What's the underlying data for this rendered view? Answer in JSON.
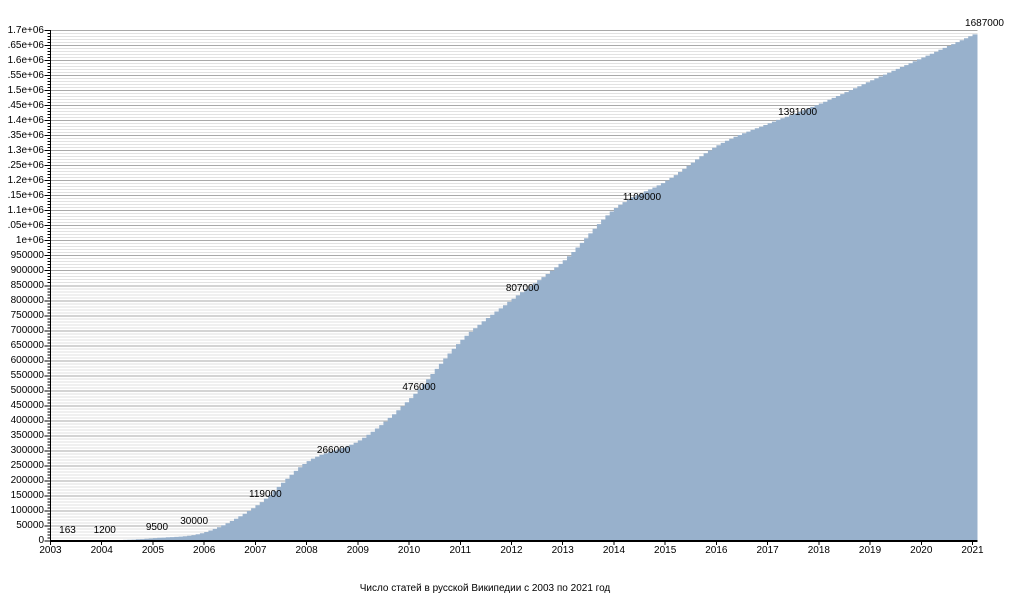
{
  "title": "Число статей в русской Википедии с 2003 по 2021 год",
  "colors": {
    "fill": "#98b1cc",
    "grid_minor": "#e2e2e2",
    "grid_major": "#a8a8a8",
    "axis": "#000000",
    "text": "#000000",
    "background": "#ffffff"
  },
  "chart_data": {
    "type": "area",
    "title": "Число статей в русской Википедии с 2003 по 2021 год",
    "xlabel": "",
    "ylabel": "",
    "x": [
      2003,
      2004,
      2005,
      2006,
      2007,
      2008,
      2009,
      2010,
      2011,
      2012,
      2013,
      2014,
      2015,
      2016,
      2017,
      2018,
      2019,
      2020,
      2021
    ],
    "values": [
      163,
      1200,
      9500,
      30000,
      119000,
      266000,
      335000,
      476000,
      670000,
      807000,
      935000,
      1109000,
      1200000,
      1318000,
      1391000,
      1457000,
      1534000,
      1610000,
      1687000
    ],
    "annotations": [
      {
        "year": 2003,
        "value": 163,
        "label": "163",
        "dx": 17
      },
      {
        "year": 2004,
        "value": 1200,
        "label": "1200",
        "dx": 3
      },
      {
        "year": 2005,
        "value": 9500,
        "label": "9500",
        "dx": 4
      },
      {
        "year": 2006,
        "value": 30000,
        "label": "30000",
        "dx": -10
      },
      {
        "year": 2007,
        "value": 119000,
        "label": "119000",
        "dx": 10
      },
      {
        "year": 2008,
        "value": 266000,
        "label": "266000",
        "dx": 27
      },
      {
        "year": 2010,
        "value": 476000,
        "label": "476000",
        "dx": 10
      },
      {
        "year": 2012,
        "value": 807000,
        "label": "807000",
        "dx": 11
      },
      {
        "year": 2014,
        "value": 1109000,
        "label": "1109000",
        "dx": 28
      },
      {
        "year": 2017,
        "value": 1391000,
        "label": "1391000",
        "dx": 30
      },
      {
        "year": 2021,
        "value": 1687000,
        "label": "1687000",
        "dx": 12
      }
    ],
    "x_tick_labels": [
      "2003",
      "2004",
      "2005",
      "2006",
      "2007",
      "2008",
      "2009",
      "2010",
      "2011",
      "2012",
      "2013",
      "2014",
      "2015",
      "2016",
      "2017",
      "2018",
      "2019",
      "2020",
      "2021"
    ],
    "y_tick_labels": [
      "0",
      "50000",
      "100000",
      "150000",
      "200000",
      "250000",
      "300000",
      "350000",
      "400000",
      "450000",
      "500000",
      "550000",
      "600000",
      "650000",
      "700000",
      "750000",
      "800000",
      "850000",
      "900000",
      "950000",
      "1e+06",
      ".05e+06",
      "1.1e+06",
      ".15e+06",
      "1.2e+06",
      ".25e+06",
      "1.3e+06",
      ".35e+06",
      "1.4e+06",
      ".45e+06",
      "1.5e+06",
      ".55e+06",
      "1.6e+06",
      ".65e+06",
      "1.7e+06"
    ],
    "xlim": [
      2003,
      2021.1
    ],
    "ylim": [
      0,
      1700000
    ],
    "y_major_step": 50000,
    "y_minor_step": 10000,
    "grid": true,
    "legend": false,
    "step_style": "monthly-steps"
  }
}
